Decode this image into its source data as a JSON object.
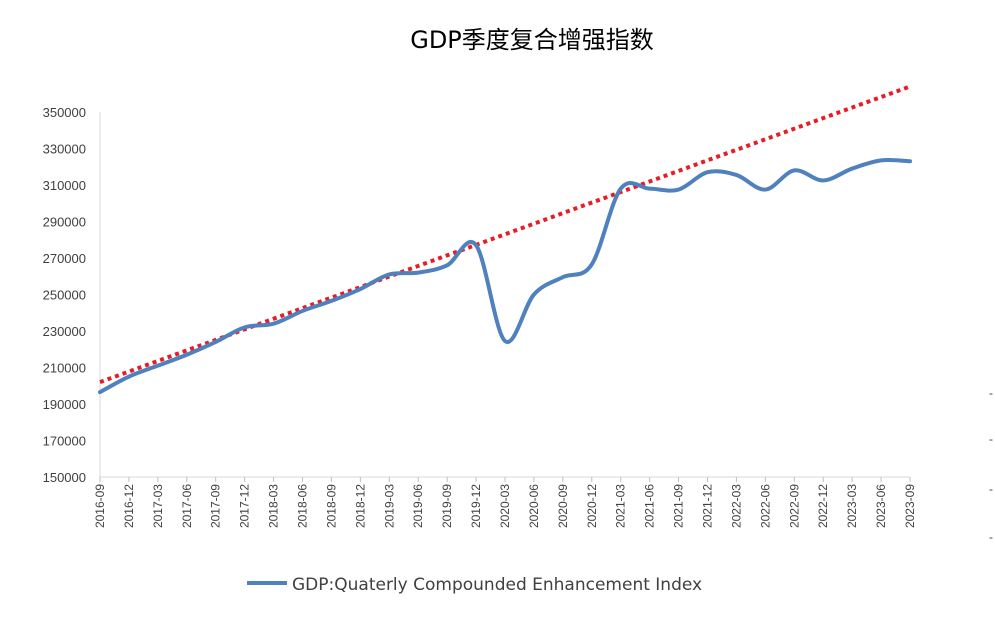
{
  "chart_data": {
    "type": "line",
    "title": "GDP季度复合增强指数",
    "xlabel": "",
    "ylabel": "",
    "ylim": [
      150000,
      350000
    ],
    "yticks": [
      150000,
      170000,
      190000,
      210000,
      230000,
      250000,
      270000,
      290000,
      310000,
      330000,
      350000
    ],
    "categories": [
      "2016-09",
      "2016-12",
      "2017-03",
      "2017-06",
      "2017-09",
      "2017-12",
      "2018-03",
      "2018-06",
      "2018-09",
      "2018-12",
      "2019-03",
      "2019-06",
      "2019-09",
      "2019-12",
      "2020-03",
      "2020-06",
      "2020-09",
      "2020-12",
      "2021-03",
      "2021-06",
      "2021-09",
      "2021-12",
      "2022-03",
      "2022-06",
      "2022-09",
      "2022-12",
      "2023-03",
      "2023-06",
      "2023-09"
    ],
    "series": [
      {
        "name": "GDP:Quaterly Compounded Enhancement Index",
        "color": "#4F81BD",
        "values": [
          196500,
          205000,
          211000,
          217000,
          224000,
          232000,
          234000,
          241000,
          246500,
          253000,
          261000,
          262000,
          266000,
          277000,
          224500,
          250000,
          259500,
          266500,
          308000,
          308000,
          307500,
          317000,
          315500,
          307500,
          318000,
          312500,
          319000,
          323500,
          323000
        ]
      }
    ],
    "trendline": {
      "color": "#E81C24",
      "style": "dotted",
      "start_value": 202000,
      "end_value": 364000
    },
    "legend_position": "bottom",
    "grid": false
  },
  "edge_marks": [
    "-",
    "-",
    "-",
    "-"
  ]
}
